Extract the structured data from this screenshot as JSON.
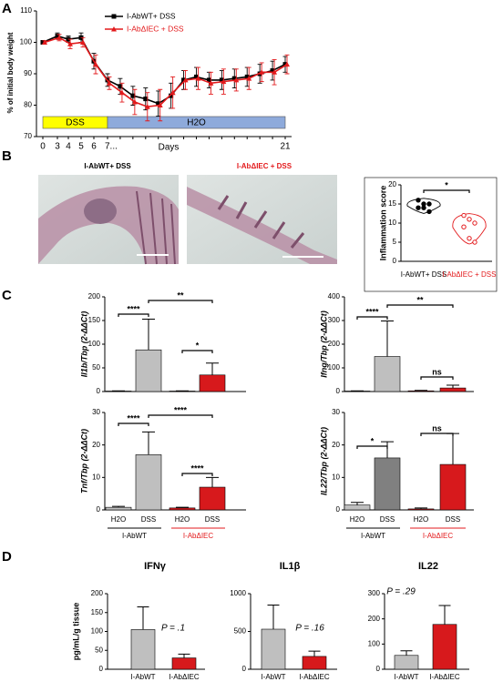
{
  "panels": [
    "A",
    "B",
    "C",
    "D"
  ],
  "images": [
    {
      "caption": "I-AbWT+ DSS",
      "color": "#000000"
    },
    {
      "caption": "I-AbΔIEC + DSS",
      "color": "#e31a1c"
    }
  ],
  "chart_data": [
    {
      "type": "line",
      "ylabel": "% of initial body weight",
      "xlabel": "Days",
      "categories": [
        "0",
        "3",
        "4",
        "5",
        "6",
        "7...",
        null,
        null,
        null,
        null,
        null,
        null,
        null,
        null,
        null,
        null,
        null,
        null,
        null,
        "21"
      ],
      "ylim": [
        70,
        110
      ],
      "yticks": [
        70,
        80,
        90,
        100,
        110
      ],
      "legend": "upper center",
      "series": [
        {
          "name": "I-AbWT+ DSS",
          "color": "#000000",
          "marker": "square",
          "values": [
            100,
            102,
            101,
            101.5,
            94,
            88,
            86,
            83,
            82,
            80.5,
            83,
            88,
            89,
            88,
            88,
            88.5,
            89,
            90,
            91,
            93
          ],
          "errors": [
            0.5,
            1,
            1,
            1.5,
            2.5,
            2,
            2.5,
            3,
            3.5,
            4,
            4,
            3,
            3,
            2.5,
            3,
            3,
            3,
            3,
            3,
            2.5
          ]
        },
        {
          "name": "I-AbΔIEC + DSS",
          "color": "#e31a1c",
          "marker": "triangle",
          "values": [
            100,
            101.5,
            99.5,
            100,
            93,
            87,
            84,
            81,
            79.5,
            80,
            84,
            88,
            88.5,
            87,
            87.5,
            88,
            88.5,
            90.5,
            90.5,
            93
          ],
          "errors": [
            0.5,
            1,
            1.5,
            1.5,
            3,
            2,
            3,
            4,
            4.5,
            5,
            5,
            3,
            3.5,
            3.5,
            4,
            3.5,
            3.5,
            3,
            4,
            3
          ]
        }
      ],
      "phases": [
        {
          "label": "DSS",
          "color": "#ffff00",
          "from": "0",
          "to": "7..."
        },
        {
          "label": "H2O",
          "color": "#8eaadb",
          "from": "7...",
          "to": "21"
        }
      ]
    },
    {
      "type": "violin",
      "ylabel": "Inflammation score",
      "categories": [
        "I-AbWT+ DSS",
        "I-AbΔIEC + DSS"
      ],
      "ylim": [
        0,
        20
      ],
      "yticks": [
        0,
        5,
        10,
        15,
        20
      ],
      "significance": [
        "*"
      ],
      "series": [
        {
          "color": "#000000",
          "values": [
            16,
            15,
            15,
            14,
            14,
            13
          ]
        },
        {
          "color": "#e31a1c",
          "values": [
            12,
            11,
            10,
            9,
            6,
            5
          ]
        }
      ]
    },
    {
      "type": "bar",
      "ylabel": "Il1b/Tbp (2-ΔΔCt)",
      "categories": [
        null,
        null,
        null,
        null
      ],
      "values": [
        1,
        88,
        1,
        35
      ],
      "errors": [
        0.5,
        65,
        0.5,
        25
      ],
      "colors": [
        "#bfbfbf",
        "#bfbfbf",
        "#d7191c",
        "#d7191c"
      ],
      "ylim": [
        0,
        200
      ],
      "yticks": [
        0,
        50,
        100,
        150,
        200
      ],
      "significance": [
        "****",
        "**",
        "*"
      ]
    },
    {
      "type": "bar",
      "ylabel": "Ifng/Tbp (2-ΔΔCt)",
      "categories": [
        null,
        null,
        null,
        null
      ],
      "values": [
        2,
        148,
        3,
        15
      ],
      "errors": [
        1,
        150,
        2,
        12
      ],
      "colors": [
        "#bfbfbf",
        "#bfbfbf",
        "#d7191c",
        "#d7191c"
      ],
      "ylim": [
        0,
        400
      ],
      "yticks": [
        0,
        100,
        200,
        300,
        400
      ],
      "significance": [
        "****",
        "**",
        "ns"
      ]
    },
    {
      "type": "bar",
      "ylabel": "Tnf/Tbp (2-ΔΔCt)",
      "categories": [
        "H2O",
        "DSS",
        "H2O",
        "DSS"
      ],
      "values": [
        0.8,
        17,
        0.6,
        7
      ],
      "errors": [
        0.3,
        7,
        0.2,
        3
      ],
      "colors": [
        "#bfbfbf",
        "#bfbfbf",
        "#d7191c",
        "#d7191c"
      ],
      "ylim": [
        0,
        30
      ],
      "yticks": [
        0,
        10,
        20,
        30
      ],
      "significance": [
        "****",
        "****",
        "****"
      ],
      "groups": [
        {
          "label": "I-AbWT",
          "color": "#000000"
        },
        {
          "label": "I-AbΔIEC",
          "color": "#e31a1c"
        }
      ]
    },
    {
      "type": "bar",
      "ylabel": "IL22/Tbp (2-ΔΔCt)",
      "categories": [
        "H2O",
        "DSS",
        "H2O",
        "DSS"
      ],
      "values": [
        1.5,
        16,
        0.3,
        14
      ],
      "errors": [
        0.8,
        5,
        0.3,
        9.5
      ],
      "colors": [
        "#bfbfbf",
        "#808080",
        "#d7191c",
        "#d7191c"
      ],
      "ylim": [
        0,
        30
      ],
      "yticks": [
        0,
        10,
        20,
        30
      ],
      "significance": [
        "*",
        "ns"
      ],
      "groups": [
        {
          "label": "I-AbWT",
          "color": "#000000"
        },
        {
          "label": "I-AbΔIEC",
          "color": "#e31a1c"
        }
      ]
    },
    {
      "type": "bar",
      "title": "IFNγ",
      "ylabel": "pg/mL/g tissue",
      "categories": [
        "I-AbWT",
        "I-AbΔIEC"
      ],
      "values": [
        105,
        30
      ],
      "errors": [
        60,
        10
      ],
      "colors": [
        "#bfbfbf",
        "#d7191c"
      ],
      "ylim": [
        0,
        200
      ],
      "yticks": [
        0,
        50,
        100,
        150,
        200
      ],
      "p_label": "P = .1"
    },
    {
      "type": "bar",
      "title": "IL1β",
      "categories": [
        "I-AbWT",
        "I-AbΔIEC"
      ],
      "values": [
        530,
        170
      ],
      "errors": [
        320,
        70
      ],
      "colors": [
        "#bfbfbf",
        "#d7191c"
      ],
      "ylim": [
        0,
        1000
      ],
      "yticks": [
        0,
        500,
        1000
      ],
      "p_label": "P = .16"
    },
    {
      "type": "bar",
      "title": "IL22",
      "categories": [
        "I-AbWT",
        "I-AbΔIEC"
      ],
      "values": [
        55,
        178
      ],
      "errors": [
        18,
        75
      ],
      "colors": [
        "#bfbfbf",
        "#d7191c"
      ],
      "ylim": [
        0,
        300
      ],
      "yticks": [
        0,
        100,
        200,
        300
      ],
      "p_label": "P = .29"
    }
  ]
}
